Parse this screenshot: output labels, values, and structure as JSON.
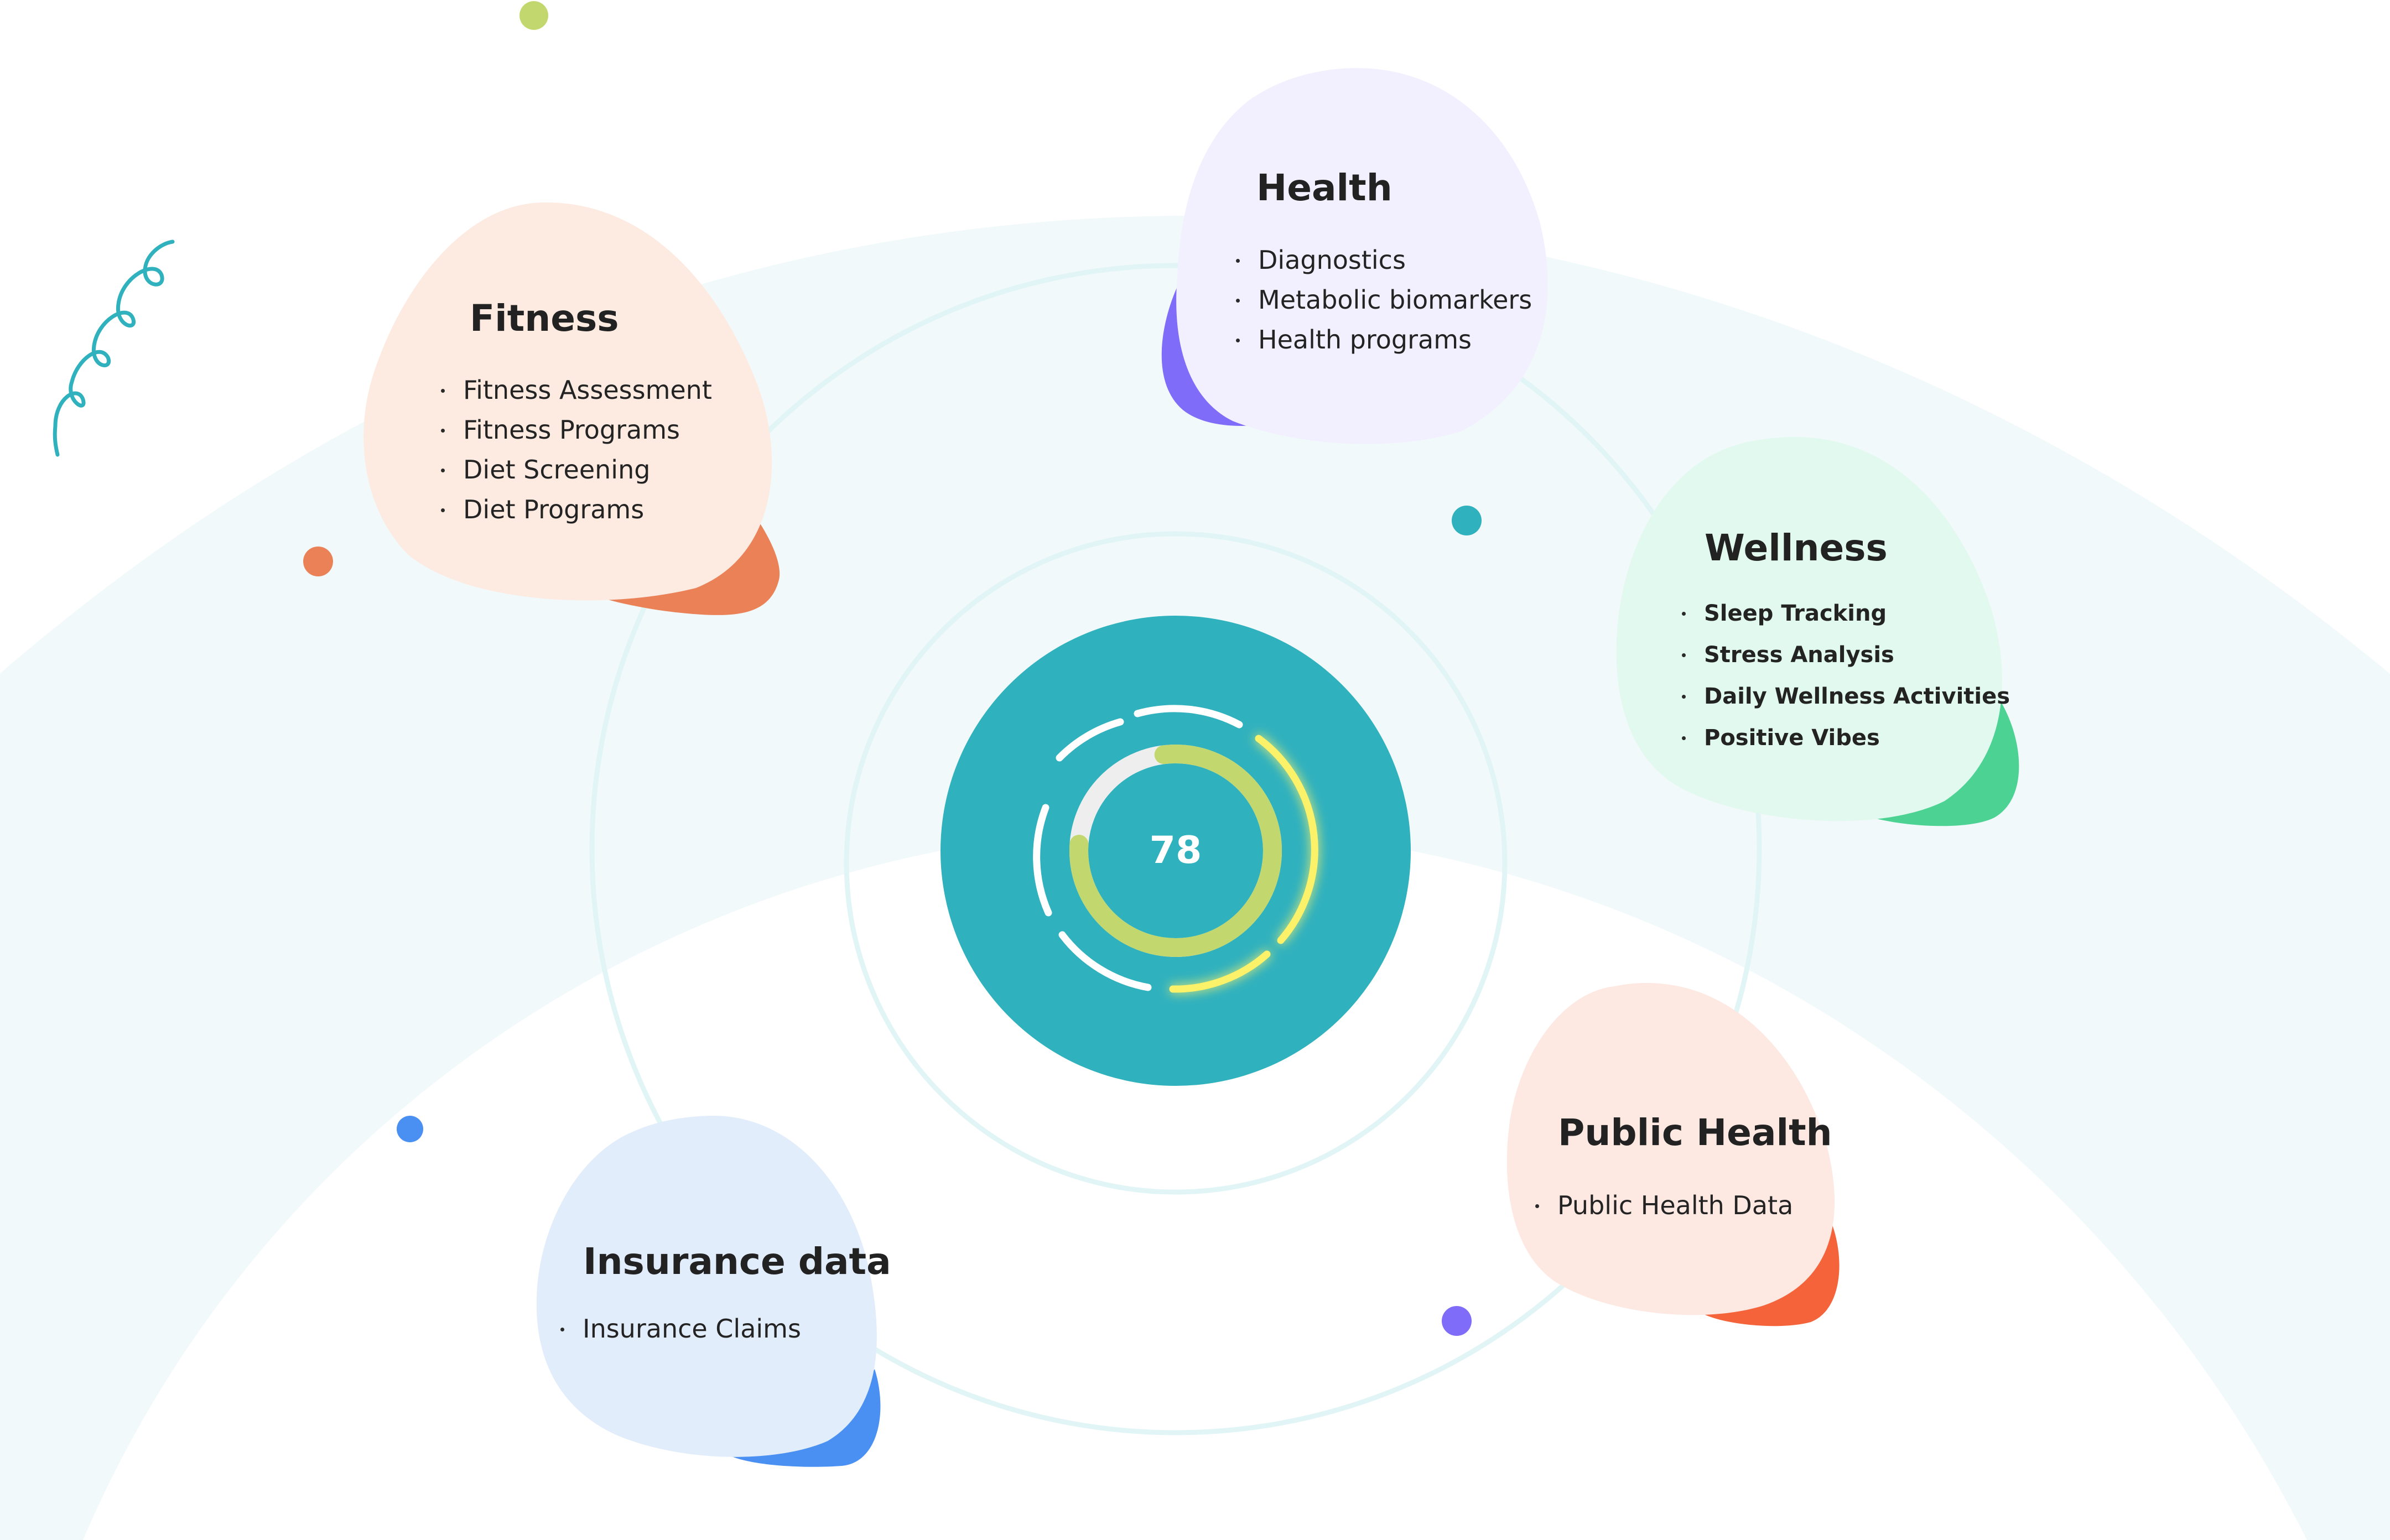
{
  "score": {
    "value": "78"
  },
  "categories": {
    "fitness": {
      "title": "Fitness",
      "items": [
        "Fitness Assessment",
        "Fitness Programs",
        "Diet Screening",
        "Diet Programs"
      ],
      "fill": "#fdeae1",
      "accent": "#ea8157"
    },
    "health": {
      "title": "Health",
      "items": [
        "Diagnostics",
        "Metabolic biomarkers",
        "Health programs"
      ],
      "fill": "#f2f0fe",
      "accent": "#7f6cf8"
    },
    "wellness": {
      "title": "Wellness",
      "items": [
        "Sleep Tracking",
        "Stress Analysis",
        "Daily Wellness Activities",
        "Positive Vibes"
      ],
      "fill": "#e1f9ee",
      "accent": "#4cd394"
    },
    "public_health": {
      "title": "Public Health",
      "items": [
        "Public Health Data"
      ],
      "fill": "#fde8e2",
      "accent": "#f5633a"
    },
    "insurance": {
      "title": "Insurance data",
      "items": [
        "Insurance Claims"
      ],
      "fill": "#e2edfb",
      "accent": "#4a90f2"
    }
  },
  "colors": {
    "hub": "#2fb1be",
    "background_band": "#f1f9fa",
    "orbit_line": "#e1f5f6",
    "gauge_fill": "#c2d86e",
    "gauge_track": "#eeeeee",
    "glow_arc": "#fbf26a",
    "squiggle": "#2fb1be",
    "dot_lime": "#c2d86e",
    "dot_orange": "#ea8157",
    "dot_teal": "#2fb1be",
    "dot_blue": "#4a90f2",
    "dot_purple": "#7f6cf8"
  }
}
